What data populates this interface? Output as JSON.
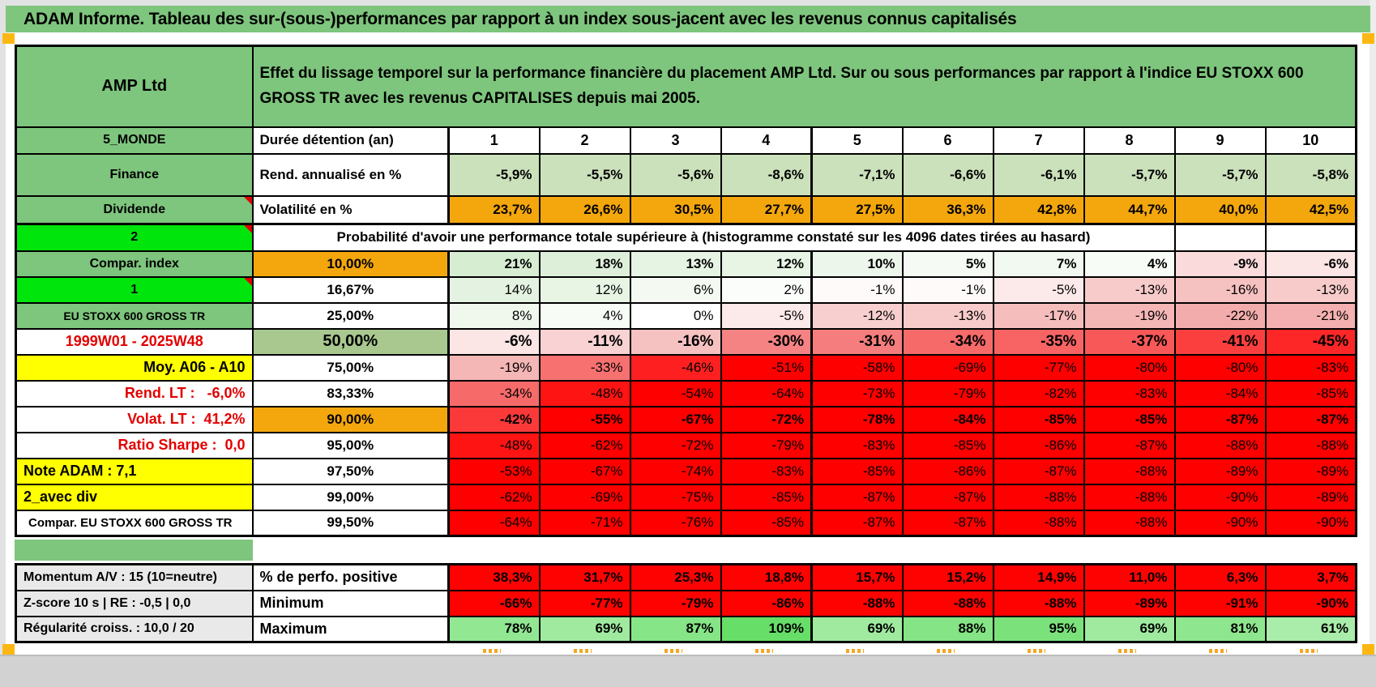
{
  "title": "ADAM Informe. Tableau des sur-(sous-)performances par rapport à un index sous-jacent avec les revenus connus capitalisés",
  "header": {
    "product": "AMP Ltd",
    "description": "Effet du lissage temporel sur la performance financière du placement AMP Ltd. Sur ou sous performances par rapport à l'indice EU STOXX 600 GROSS TR avec les revenus CAPITALISES depuis mai 2005."
  },
  "columns": [
    "1",
    "2",
    "3",
    "4",
    "5",
    "6",
    "7",
    "8",
    "9",
    "10"
  ],
  "top_rows": {
    "duration": {
      "sidebar": "5_MONDE",
      "label": "Durée détention (an)"
    },
    "rend": {
      "sidebar": "Finance",
      "label": "Rend. annualisé en %",
      "values": [
        "-5,9%",
        "-5,5%",
        "-5,6%",
        "-8,6%",
        "-7,1%",
        "-6,6%",
        "-6,1%",
        "-5,7%",
        "-5,7%",
        "-5,8%"
      ]
    },
    "vol": {
      "sidebar": "Dividende",
      "label": "Volatilité en %",
      "values": [
        "23,7%",
        "26,6%",
        "30,5%",
        "27,7%",
        "27,5%",
        "36,3%",
        "42,8%",
        "44,7%",
        "40,0%",
        "42,5%"
      ]
    },
    "proba": {
      "sidebar": "2",
      "text": "Probabilité d'avoir une performance totale supérieure à (histogramme constaté sur les 4096 dates tirées au hasard)"
    }
  },
  "matrix_rows": [
    {
      "sidebar": "Compar. index",
      "sidebar_style": "green",
      "threshold": "10,00%",
      "threshold_style": "orange",
      "bold": true,
      "big": false,
      "values": [
        "21%",
        "18%",
        "13%",
        "12%",
        "10%",
        "5%",
        "7%",
        "4%",
        "-9%",
        "-6%"
      ]
    },
    {
      "sidebar": "1",
      "sidebar_style": "bright",
      "threshold": "16,67%",
      "threshold_style": "white",
      "bold": false,
      "big": false,
      "values": [
        "14%",
        "12%",
        "6%",
        "2%",
        "-1%",
        "-1%",
        "-5%",
        "-13%",
        "-16%",
        "-13%"
      ]
    },
    {
      "sidebar": "EU STOXX 600 GROSS TR",
      "sidebar_style": "green-sm",
      "threshold": "25,00%",
      "threshold_style": "white",
      "bold": false,
      "big": false,
      "values": [
        "8%",
        "4%",
        "0%",
        "-5%",
        "-12%",
        "-13%",
        "-17%",
        "-19%",
        "-22%",
        "-21%"
      ]
    },
    {
      "sidebar": "1999W01 - 2025W48",
      "sidebar_style": "red-center",
      "threshold": "50,00%",
      "threshold_style": "sage",
      "bold": true,
      "big": true,
      "values": [
        "-6%",
        "-11%",
        "-16%",
        "-30%",
        "-31%",
        "-34%",
        "-35%",
        "-37%",
        "-41%",
        "-45%"
      ]
    },
    {
      "sidebar": "Moy. A06 - A10",
      "sidebar_style": "yellow-right",
      "threshold": "75,00%",
      "threshold_style": "white",
      "bold": false,
      "big": false,
      "values": [
        "-19%",
        "-33%",
        "-46%",
        "-51%",
        "-58%",
        "-69%",
        "-77%",
        "-80%",
        "-80%",
        "-83%"
      ]
    },
    {
      "sidebar": "Rend. LT :   -6,0%",
      "sidebar_style": "red-right",
      "threshold": "83,33%",
      "threshold_style": "white",
      "bold": false,
      "big": false,
      "values": [
        "-34%",
        "-48%",
        "-54%",
        "-64%",
        "-73%",
        "-79%",
        "-82%",
        "-83%",
        "-84%",
        "-85%"
      ]
    },
    {
      "sidebar": "Volat. LT :  41,2%",
      "sidebar_style": "red-right",
      "threshold": "90,00%",
      "threshold_style": "orange",
      "bold": true,
      "big": false,
      "values": [
        "-42%",
        "-55%",
        "-67%",
        "-72%",
        "-78%",
        "-84%",
        "-85%",
        "-85%",
        "-87%",
        "-87%"
      ]
    },
    {
      "sidebar": "Ratio Sharpe :  0,0",
      "sidebar_style": "red-right",
      "threshold": "95,00%",
      "threshold_style": "white",
      "bold": false,
      "big": false,
      "values": [
        "-48%",
        "-62%",
        "-72%",
        "-79%",
        "-83%",
        "-85%",
        "-86%",
        "-87%",
        "-88%",
        "-88%"
      ]
    },
    {
      "sidebar": "Note ADAM : 7,1",
      "sidebar_style": "yellow-left",
      "threshold": "97,50%",
      "threshold_style": "white",
      "bold": false,
      "big": false,
      "values": [
        "-53%",
        "-67%",
        "-74%",
        "-83%",
        "-85%",
        "-86%",
        "-87%",
        "-88%",
        "-89%",
        "-89%"
      ]
    },
    {
      "sidebar": "2_avec div",
      "sidebar_style": "yellow-left",
      "threshold": "99,00%",
      "threshold_style": "white",
      "bold": false,
      "big": false,
      "values": [
        "-62%",
        "-69%",
        "-75%",
        "-85%",
        "-87%",
        "-87%",
        "-88%",
        "-88%",
        "-90%",
        "-89%"
      ]
    },
    {
      "sidebar": "Compar. EU STOXX 600 GROSS TR",
      "sidebar_style": "white-left",
      "threshold": "99,50%",
      "threshold_style": "white",
      "bold": false,
      "big": false,
      "values": [
        "-64%",
        "-71%",
        "-76%",
        "-85%",
        "-87%",
        "-87%",
        "-88%",
        "-88%",
        "-90%",
        "-90%"
      ]
    }
  ],
  "footer_rows": [
    {
      "sidebar": "Momentum A/V : 15 (10=neutre)",
      "label": "% de perfo. positive",
      "bg": "red",
      "values": [
        "38,3%",
        "31,7%",
        "25,3%",
        "18,8%",
        "15,7%",
        "15,2%",
        "14,9%",
        "11,0%",
        "6,3%",
        "3,7%"
      ]
    },
    {
      "sidebar": "Z-score 10 s | RE : -0,5 | 0,0",
      "label": "Minimum",
      "bg": "red",
      "values": [
        "-66%",
        "-77%",
        "-79%",
        "-86%",
        "-88%",
        "-88%",
        "-88%",
        "-89%",
        "-91%",
        "-90%"
      ]
    },
    {
      "sidebar": "Régularité croiss. : 10,0 / 20",
      "label": "Maximum",
      "bg": "greenscale",
      "values": [
        "78%",
        "69%",
        "87%",
        "109%",
        "69%",
        "88%",
        "95%",
        "69%",
        "81%",
        "61%"
      ]
    }
  ],
  "colors": {
    "header_green": "#7ec57d",
    "bright_green": "#00e50b",
    "orange": "#f4a70d",
    "yellow": "#ffff00",
    "sage": "#a9c88f",
    "light_green_row": "#cbe1bb",
    "full_red": "#fe0202",
    "red_text": "#e30000",
    "footer_label_gray": "#e9e9e9"
  }
}
